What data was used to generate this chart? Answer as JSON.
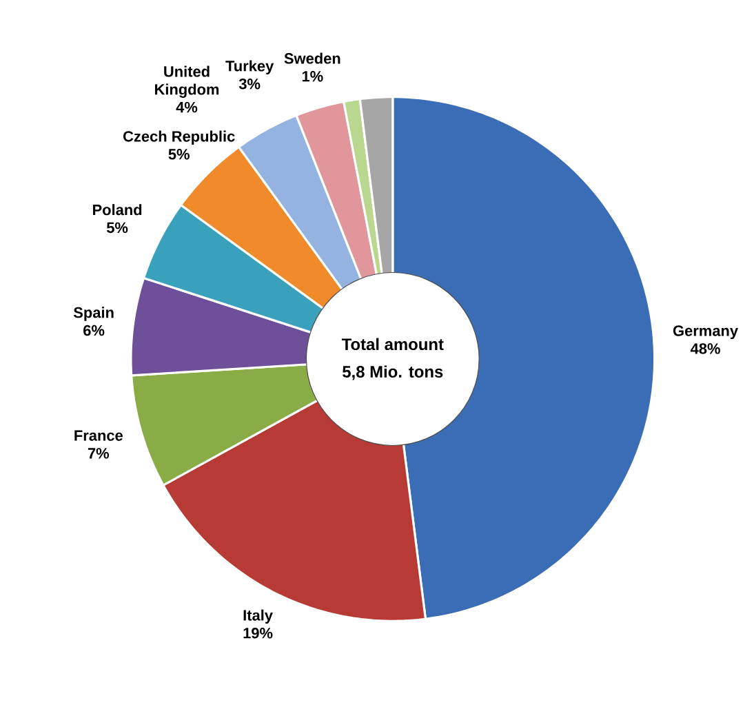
{
  "chart_data": {
    "type": "donut",
    "categories": [
      "Germany",
      "Italy",
      "France",
      "Spain",
      "Poland",
      "Czech Republic",
      "United Kingdom",
      "Turkey",
      "Sweden",
      null
    ],
    "values": [
      48,
      19,
      7,
      6,
      5,
      5,
      4,
      3,
      1,
      2
    ],
    "value_labels": [
      "48%",
      "19%",
      "7%",
      "6%",
      "5%",
      "5%",
      "4%",
      "3%",
      "1%",
      null
    ],
    "colors": [
      "#3a6db5",
      "#b83a35",
      "#8aac47",
      "#6e4f9a",
      "#3aa1bd",
      "#f08a2a",
      "#95b3e0",
      "#e0969a",
      "#b9d78f",
      "#a6a6a6"
    ],
    "annotations": [
      "Total amount",
      "5,8 Mio. tons"
    ]
  }
}
